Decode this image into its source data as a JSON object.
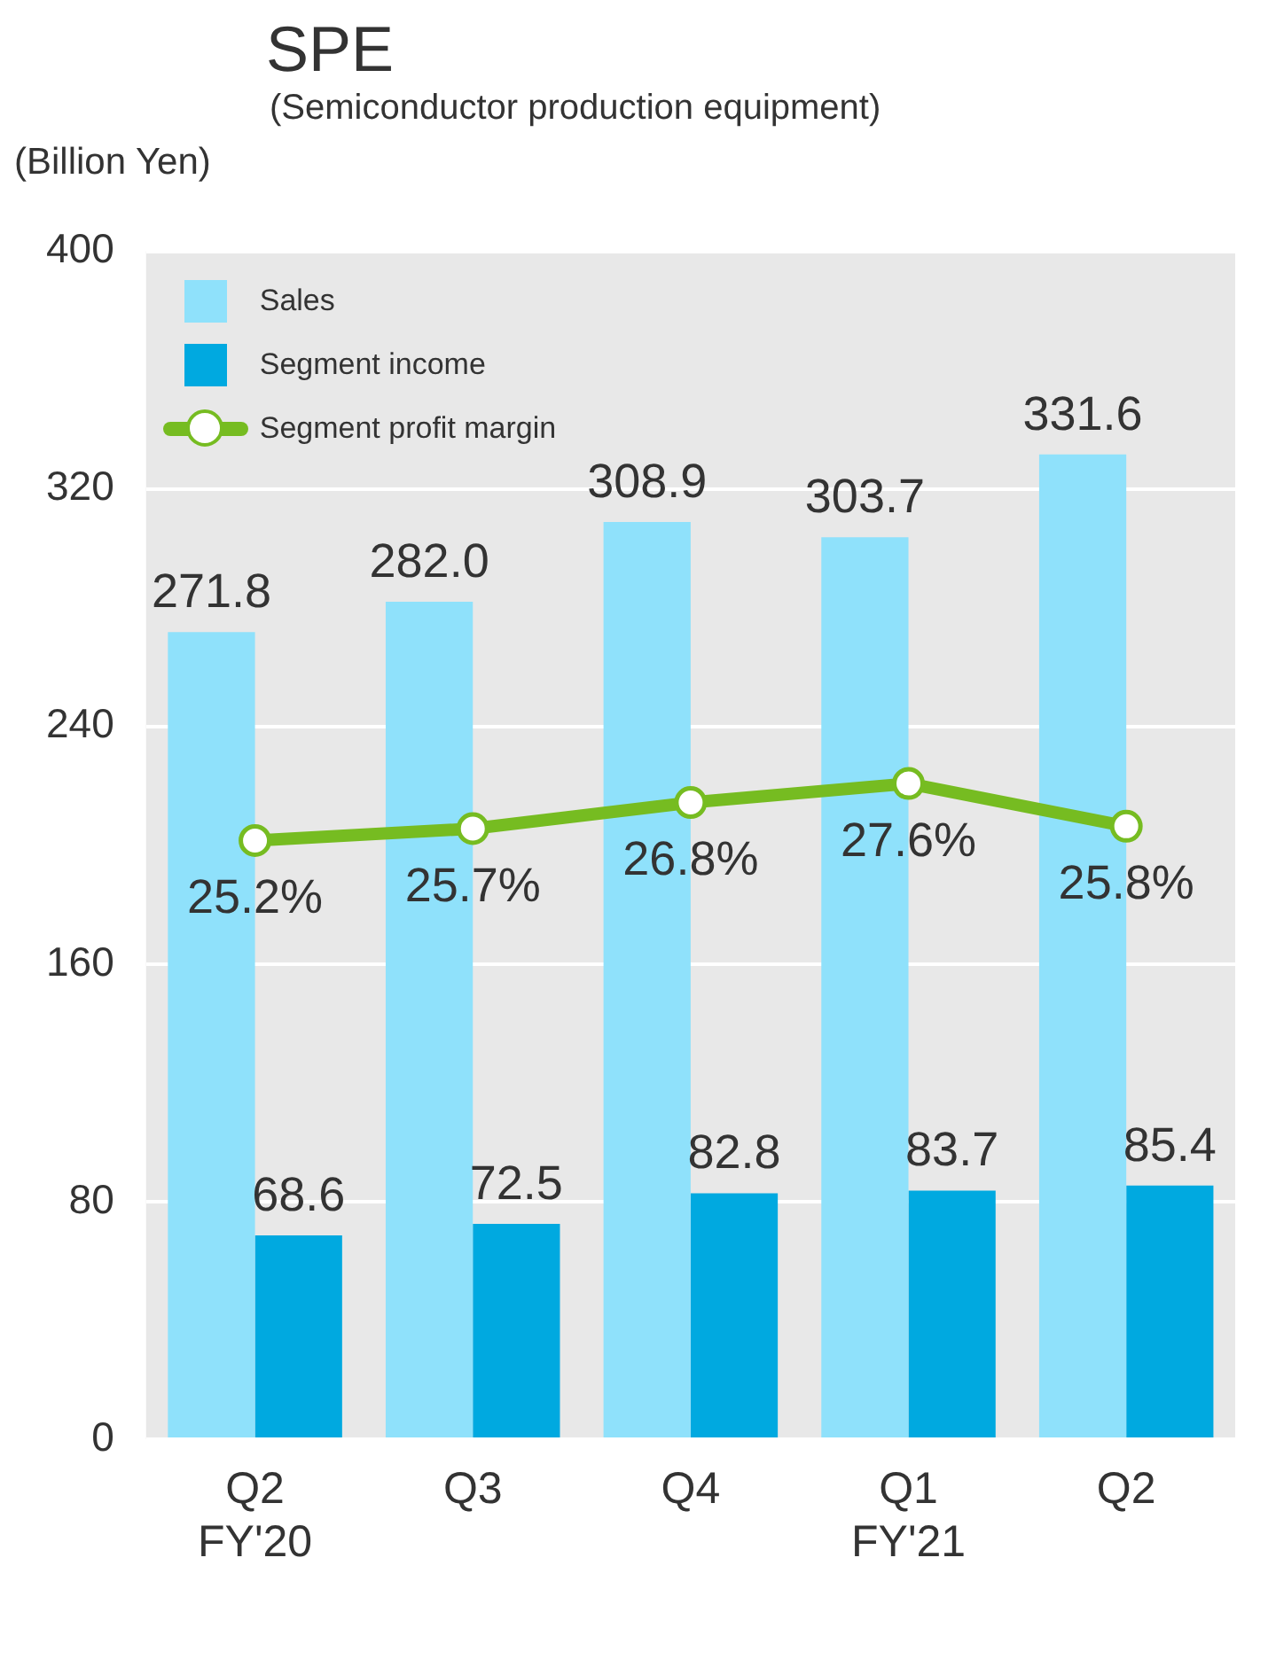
{
  "chart_data": {
    "type": "bar",
    "title": "SPE",
    "subtitle": "(Semiconductor production equipment)",
    "ylabel": "(Billion Yen)",
    "categories": [
      "Q2\nFY'20",
      "Q3",
      "Q4",
      "Q1\nFY'21",
      "Q2"
    ],
    "series": [
      {
        "name": "Sales",
        "color": "#8fe1fb",
        "values": [
          271.8,
          282.0,
          308.9,
          303.7,
          331.6
        ],
        "value_labels": [
          "271.8",
          "282.0",
          "308.9",
          "303.7",
          "331.6"
        ]
      },
      {
        "name": "Segment income",
        "color": "#00a9e0",
        "values": [
          68.6,
          72.5,
          82.8,
          83.7,
          85.4
        ],
        "value_labels": [
          "68.6",
          "72.5",
          "82.8",
          "83.7",
          "85.4"
        ]
      },
      {
        "name": "Segment profit margin",
        "type": "line",
        "axis": "y2",
        "color": "#76bc21",
        "values": [
          25.2,
          25.7,
          26.8,
          27.6,
          25.8
        ],
        "value_labels": [
          "25.2%",
          "25.7%",
          "26.8%",
          "27.6%",
          "25.8%"
        ]
      }
    ],
    "ylim": [
      0,
      400
    ],
    "yticks": [
      0,
      80,
      160,
      240,
      320,
      400
    ],
    "y2lim": [
      0,
      50
    ],
    "grid": "y",
    "legend": "top left",
    "marker": "circle",
    "line_style": "solid",
    "data_labels": true
  }
}
